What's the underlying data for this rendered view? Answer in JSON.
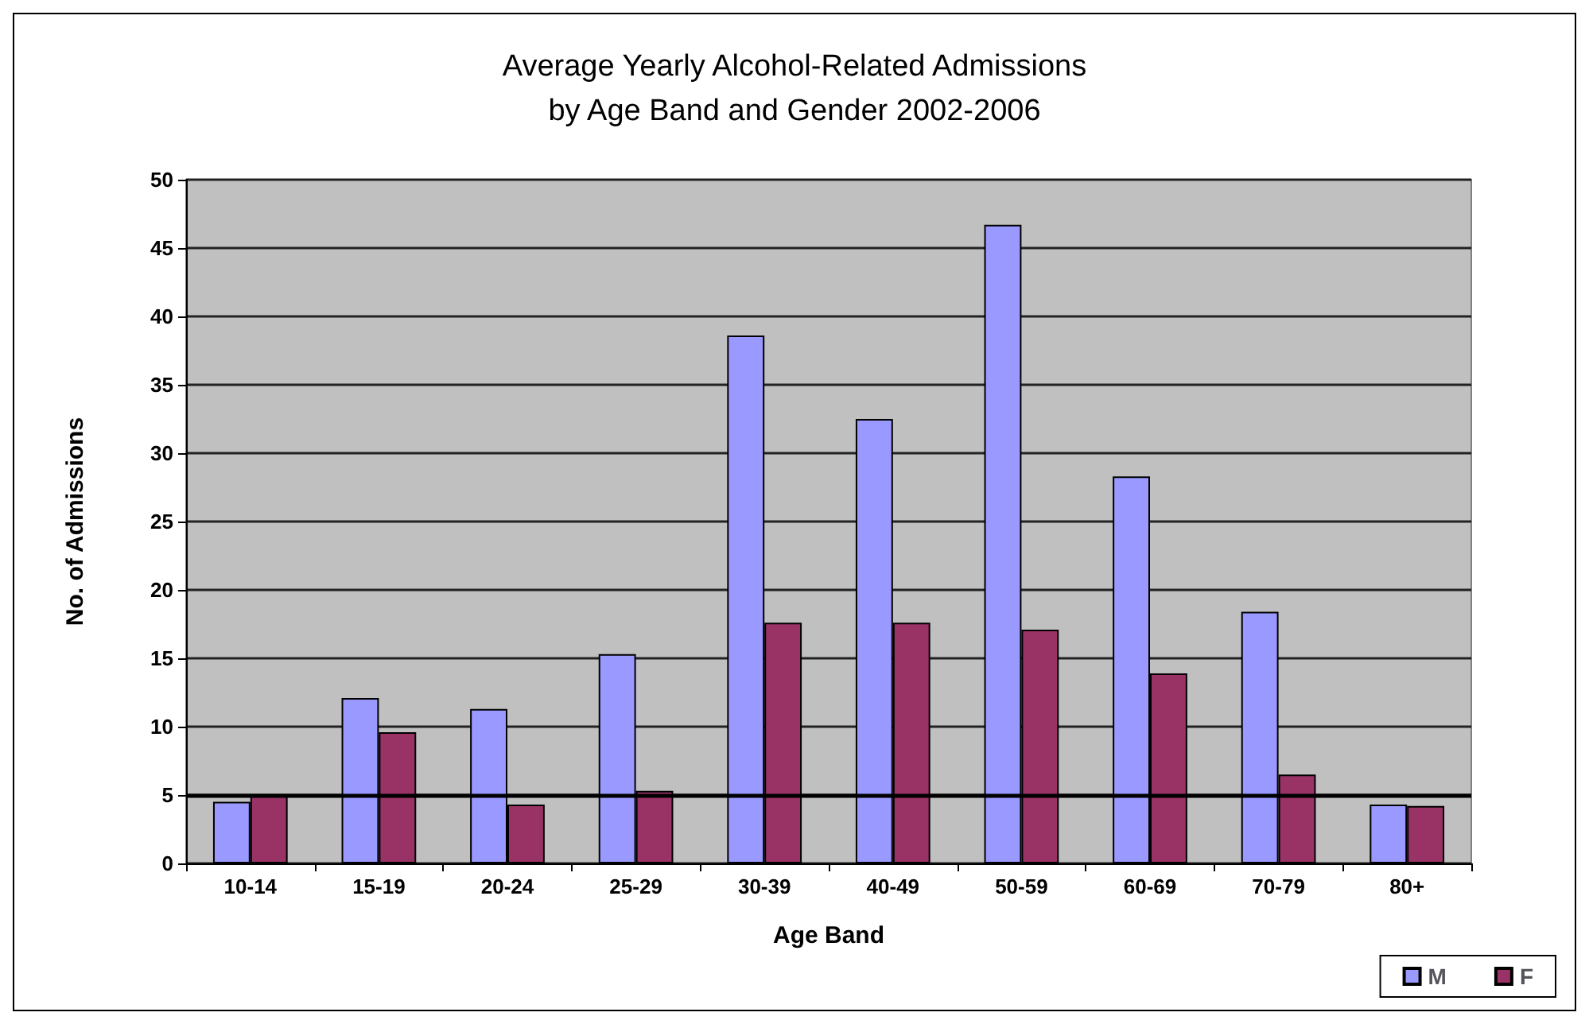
{
  "chart_data": {
    "type": "bar",
    "title": "Average Yearly Alcohol-Related Admissions\nby Age Band and Gender 2002-2006",
    "xlabel": "Age Band",
    "ylabel": "No. of Admissions",
    "categories": [
      "10-14",
      "15-19",
      "20-24",
      "25-29",
      "30-39",
      "40-49",
      "50-59",
      "60-69",
      "70-79",
      "80+"
    ],
    "series": [
      {
        "name": "M",
        "color": "#9999ff",
        "values": [
          4.5,
          12.1,
          11.3,
          15.3,
          38.6,
          32.5,
          46.7,
          28.3,
          18.4,
          4.3
        ]
      },
      {
        "name": "F",
        "color": "#993366",
        "values": [
          5.0,
          9.6,
          4.3,
          5.3,
          17.6,
          17.6,
          17.1,
          13.9,
          6.5,
          4.2
        ]
      }
    ],
    "ylim": [
      0,
      50
    ],
    "yticks": [
      0,
      5,
      10,
      15,
      20,
      25,
      30,
      35,
      40,
      45,
      50
    ],
    "grid": "y",
    "legend": "bottom right",
    "ref_lines": [
      {
        "axis": "y",
        "value": 5,
        "color": "#000000"
      }
    ]
  }
}
